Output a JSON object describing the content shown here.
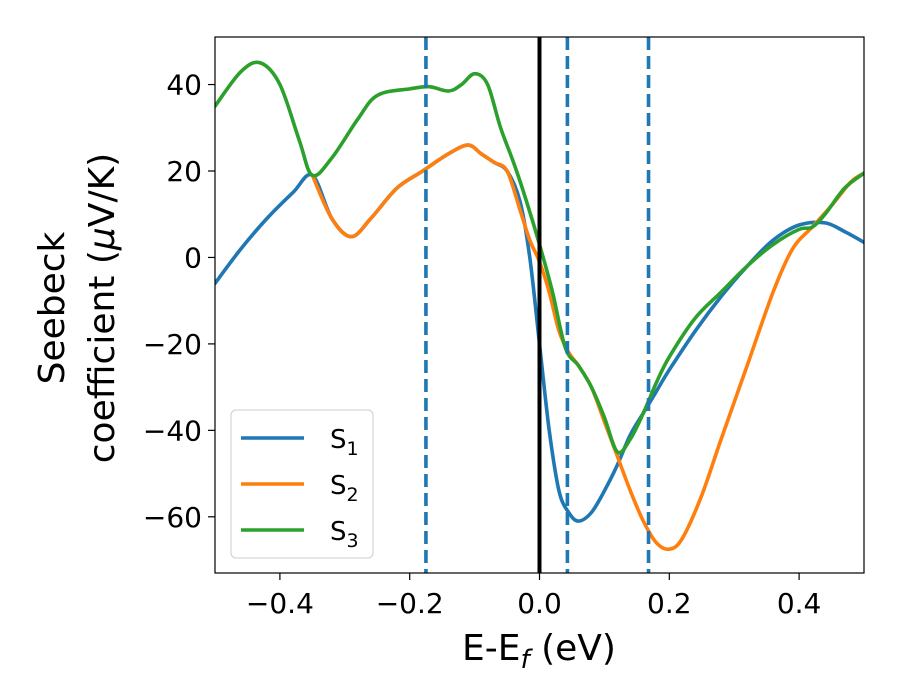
{
  "chart_data": {
    "type": "line",
    "xlabel": "E-E",
    "xlabel_subscript": "f",
    "xlabel_unit": " (eV)",
    "ylabel_line1": "Seebeck",
    "ylabel_line2_prefix": "coefficient  (",
    "ylabel_mu": "μ",
    "ylabel_line2_suffix": "V/K)",
    "xlim": [
      -0.5,
      0.5
    ],
    "ylim": [
      -73,
      51
    ],
    "xticks": [
      -0.4,
      -0.2,
      0.0,
      0.2,
      0.4
    ],
    "xtick_labels": [
      "−0.4",
      "−0.2",
      "0.0",
      "0.2",
      "0.4"
    ],
    "yticks": [
      -60,
      -40,
      -20,
      0,
      20,
      40
    ],
    "ytick_labels": [
      "−60",
      "−40",
      "−20",
      "0",
      "20",
      "40"
    ],
    "grid": false,
    "legend_position": "lower-left",
    "vlines": [
      {
        "x": -0.175,
        "style": "dashed",
        "color": "#1f77b4"
      },
      {
        "x": 0.0,
        "style": "solid",
        "color": "#000000"
      },
      {
        "x": 0.043,
        "style": "dashed",
        "color": "#1f77b4"
      },
      {
        "x": 0.168,
        "style": "dashed",
        "color": "#1f77b4"
      }
    ],
    "series": [
      {
        "name": "S",
        "sub": "1",
        "color": "#1f77b4",
        "points": [
          [
            -0.5,
            -6
          ],
          [
            -0.46,
            2
          ],
          [
            -0.42,
            9
          ],
          [
            -0.38,
            15
          ],
          [
            -0.35,
            19
          ],
          [
            -0.32,
            9
          ],
          [
            -0.29,
            4.8
          ],
          [
            -0.26,
            9
          ],
          [
            -0.22,
            16
          ],
          [
            -0.18,
            20
          ],
          [
            -0.14,
            24
          ],
          [
            -0.11,
            26
          ],
          [
            -0.09,
            24
          ],
          [
            -0.07,
            22
          ],
          [
            -0.05,
            20
          ],
          [
            -0.03,
            13
          ],
          [
            -0.015,
            0
          ],
          [
            0.0,
            -20
          ],
          [
            0.015,
            -40
          ],
          [
            0.03,
            -54
          ],
          [
            0.045,
            -59
          ],
          [
            0.06,
            -61
          ],
          [
            0.08,
            -59
          ],
          [
            0.1,
            -54
          ],
          [
            0.12,
            -48
          ],
          [
            0.14,
            -41
          ],
          [
            0.16,
            -36
          ],
          [
            0.18,
            -31
          ],
          [
            0.2,
            -26
          ],
          [
            0.24,
            -17
          ],
          [
            0.28,
            -9
          ],
          [
            0.32,
            -2
          ],
          [
            0.36,
            4
          ],
          [
            0.4,
            7.5
          ],
          [
            0.44,
            8
          ],
          [
            0.47,
            6
          ],
          [
            0.5,
            3.5
          ]
        ]
      },
      {
        "name": "S",
        "sub": "2",
        "color": "#ff7f0e",
        "points": [
          [
            -0.35,
            19
          ],
          [
            -0.32,
            9
          ],
          [
            -0.29,
            4.8
          ],
          [
            -0.26,
            9
          ],
          [
            -0.22,
            16
          ],
          [
            -0.18,
            20
          ],
          [
            -0.14,
            24
          ],
          [
            -0.11,
            26
          ],
          [
            -0.09,
            24
          ],
          [
            -0.07,
            22
          ],
          [
            -0.05,
            20
          ],
          [
            -0.03,
            11
          ],
          [
            -0.015,
            4
          ],
          [
            0.0,
            -1
          ],
          [
            0.015,
            -8
          ],
          [
            0.03,
            -17
          ],
          [
            0.045,
            -22
          ],
          [
            0.06,
            -25
          ],
          [
            0.08,
            -30
          ],
          [
            0.1,
            -38
          ],
          [
            0.12,
            -46
          ],
          [
            0.14,
            -54
          ],
          [
            0.16,
            -61
          ],
          [
            0.18,
            -66
          ],
          [
            0.2,
            -67.5
          ],
          [
            0.22,
            -65
          ],
          [
            0.25,
            -55
          ],
          [
            0.28,
            -42
          ],
          [
            0.32,
            -25
          ],
          [
            0.36,
            -8
          ],
          [
            0.39,
            2
          ],
          [
            0.42,
            7
          ],
          [
            0.45,
            12
          ],
          [
            0.48,
            17.5
          ],
          [
            0.5,
            19.5
          ]
        ]
      },
      {
        "name": "S",
        "sub": "3",
        "color": "#2ca02c",
        "points": [
          [
            -0.5,
            35
          ],
          [
            -0.46,
            43
          ],
          [
            -0.43,
            45
          ],
          [
            -0.4,
            40
          ],
          [
            -0.37,
            27
          ],
          [
            -0.35,
            19
          ],
          [
            -0.32,
            23
          ],
          [
            -0.28,
            32
          ],
          [
            -0.25,
            37.5
          ],
          [
            -0.2,
            39
          ],
          [
            -0.17,
            39.5
          ],
          [
            -0.14,
            38.5
          ],
          [
            -0.12,
            40
          ],
          [
            -0.1,
            42.5
          ],
          [
            -0.08,
            40
          ],
          [
            -0.06,
            30
          ],
          [
            -0.04,
            22
          ],
          [
            -0.02,
            13
          ],
          [
            0.0,
            3
          ],
          [
            0.02,
            -8
          ],
          [
            0.04,
            -21
          ],
          [
            0.06,
            -25
          ],
          [
            0.08,
            -30
          ],
          [
            0.1,
            -37
          ],
          [
            0.12,
            -45
          ],
          [
            0.14,
            -42
          ],
          [
            0.16,
            -36
          ],
          [
            0.18,
            -29
          ],
          [
            0.2,
            -23
          ],
          [
            0.24,
            -14
          ],
          [
            0.28,
            -8
          ],
          [
            0.32,
            -2
          ],
          [
            0.36,
            3
          ],
          [
            0.4,
            6.5
          ],
          [
            0.42,
            7
          ],
          [
            0.44,
            10
          ],
          [
            0.47,
            16
          ],
          [
            0.5,
            19.5
          ]
        ]
      }
    ]
  }
}
